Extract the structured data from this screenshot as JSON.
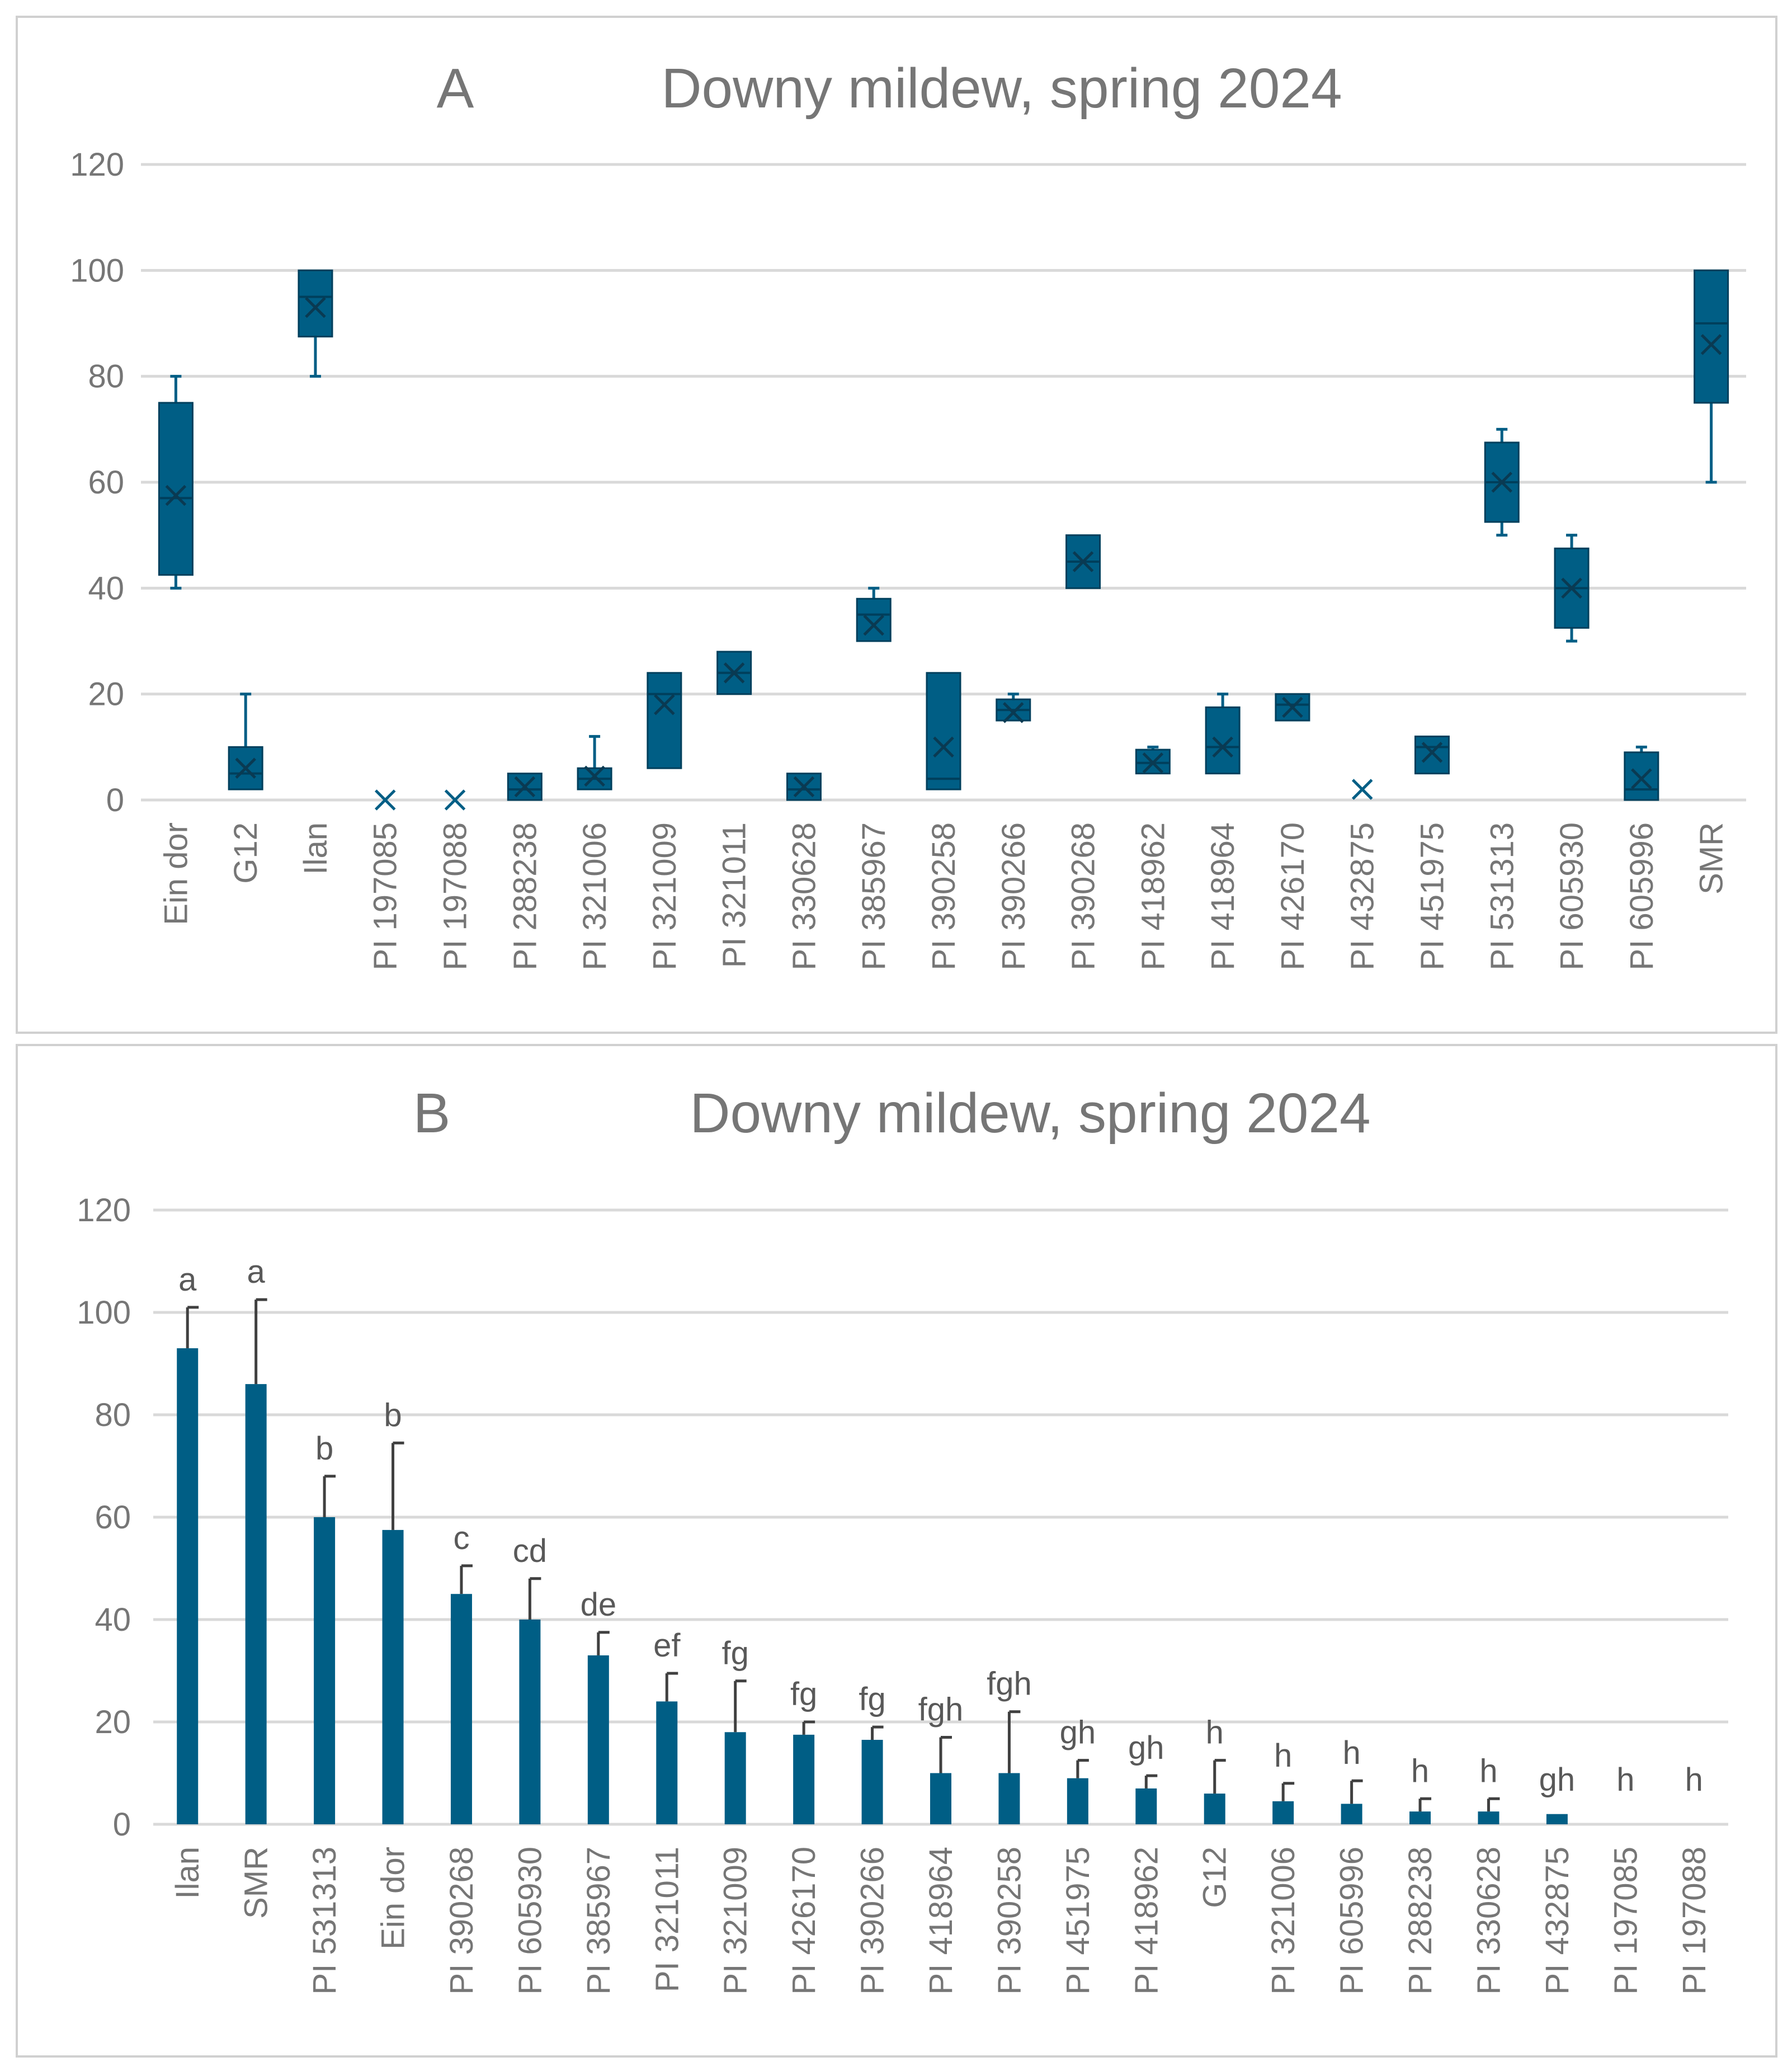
{
  "chart_data": [
    {
      "type": "box",
      "panel_label": "A",
      "title": "Downy mildew, spring 2024",
      "ylim": [
        0,
        120
      ],
      "yticks": [
        "0",
        "20",
        "40",
        "60",
        "80",
        "100",
        "120"
      ],
      "color": "#005e85",
      "categories": [
        "Ein dor",
        "G12",
        "Ilan",
        "PI 197085",
        "PI 197088",
        "PI 288238",
        "PI 321006",
        "PI 321009",
        "PI 321011",
        "PI 330628",
        "PI 385967",
        "PI 390258",
        "PI 390266",
        "PI 390268",
        "PI 418962",
        "PI 418964",
        "PI 426170",
        "PI 432875",
        "PI 451975",
        "PI 531313",
        "PI 605930",
        "PI 605996",
        "SMR"
      ],
      "boxes": [
        {
          "min": 40,
          "q1": 42.5,
          "median": 57,
          "q3": 75,
          "max": 80,
          "mean": 57.5
        },
        {
          "min": 2,
          "q1": 2,
          "median": 5,
          "q3": 10,
          "max": 20,
          "mean": 6
        },
        {
          "min": 80,
          "q1": 87.5,
          "median": 95,
          "q3": 100,
          "max": 100,
          "mean": 93
        },
        {
          "min": 0,
          "q1": 0,
          "median": 0,
          "q3": 0,
          "max": 0,
          "mean": 0
        },
        {
          "min": 0,
          "q1": 0,
          "median": 0,
          "q3": 0,
          "max": 0,
          "mean": 0
        },
        {
          "min": 0,
          "q1": 0,
          "median": 2,
          "q3": 5,
          "max": 5,
          "mean": 2.5
        },
        {
          "min": 2,
          "q1": 2,
          "median": 4,
          "q3": 6,
          "max": 12,
          "mean": 4.5
        },
        {
          "min": 6,
          "q1": 6,
          "median": 20,
          "q3": 24,
          "max": 24,
          "mean": 18
        },
        {
          "min": 20,
          "q1": 20,
          "median": 24,
          "q3": 28,
          "max": 28,
          "mean": 24
        },
        {
          "min": 0,
          "q1": 0,
          "median": 2,
          "q3": 5,
          "max": 5,
          "mean": 2.5
        },
        {
          "min": 30,
          "q1": 30,
          "median": 35,
          "q3": 38,
          "max": 40,
          "mean": 33
        },
        {
          "min": 2,
          "q1": 2,
          "median": 4,
          "q3": 24,
          "max": 24,
          "mean": 10
        },
        {
          "min": 15,
          "q1": 15,
          "median": 17,
          "q3": 19,
          "max": 20,
          "mean": 16.5
        },
        {
          "min": 40,
          "q1": 40,
          "median": 45,
          "q3": 50,
          "max": 50,
          "mean": 45
        },
        {
          "min": 5,
          "q1": 5,
          "median": 7,
          "q3": 9.5,
          "max": 10,
          "mean": 7
        },
        {
          "min": 5,
          "q1": 5,
          "median": 10,
          "q3": 17.5,
          "max": 20,
          "mean": 10
        },
        {
          "min": 15,
          "q1": 15,
          "median": 18,
          "q3": 20,
          "max": 20,
          "mean": 17.5
        },
        {
          "min": 2,
          "q1": 2,
          "median": 2,
          "q3": 2,
          "max": 2,
          "mean": 2
        },
        {
          "min": 5,
          "q1": 5,
          "median": 10,
          "q3": 12,
          "max": 12,
          "mean": 9
        },
        {
          "min": 50,
          "q1": 52.5,
          "median": 60,
          "q3": 67.5,
          "max": 70,
          "mean": 60
        },
        {
          "min": 30,
          "q1": 32.5,
          "median": 40,
          "q3": 47.5,
          "max": 50,
          "mean": 40
        },
        {
          "min": 0,
          "q1": 0,
          "median": 2,
          "q3": 9,
          "max": 10,
          "mean": 4
        },
        {
          "min": 60,
          "q1": 75,
          "median": 90,
          "q3": 100,
          "max": 100,
          "mean": 86
        }
      ]
    },
    {
      "type": "bar",
      "panel_label": "B",
      "title": "Downy mildew, spring 2024",
      "ylim": [
        0,
        120
      ],
      "yticks": [
        "0",
        "20",
        "40",
        "60",
        "80",
        "100",
        "120"
      ],
      "color": "#005e85",
      "error_color": "#404040",
      "categories": [
        "Ilan",
        "SMR",
        "PI 531313",
        "Ein dor",
        "PI 390268",
        "PI 605930",
        "PI 385967",
        "PI 321011",
        "PI 321009",
        "PI 426170",
        "PI 390266",
        "PI 418964",
        "PI 390258",
        "PI 451975",
        "PI 418962",
        "G12",
        "PI 321006",
        "PI 605996",
        "PI 288238",
        "PI 330628",
        "PI 432875",
        "PI 197085",
        "PI 197088"
      ],
      "values": [
        93,
        86,
        60,
        57.5,
        45,
        40,
        33,
        24,
        18,
        17.5,
        16.5,
        10,
        10,
        9,
        7,
        6,
        4.5,
        4,
        2.5,
        2.5,
        2,
        0,
        0
      ],
      "errors": [
        8,
        16.5,
        8,
        17,
        5.5,
        8,
        4.5,
        5.5,
        10,
        2.5,
        2.5,
        7,
        12,
        3.5,
        2.5,
        6.5,
        3.5,
        4.5,
        2.5,
        2.5,
        0,
        0,
        0
      ],
      "letters": [
        "a",
        "a",
        "b",
        "b",
        "c",
        "cd",
        "de",
        "ef",
        "fg",
        "fg",
        "fg",
        "fgh",
        "fgh",
        "gh",
        "gh",
        "h",
        "h",
        "h",
        "h",
        "h",
        "gh",
        "h",
        "h"
      ]
    }
  ]
}
